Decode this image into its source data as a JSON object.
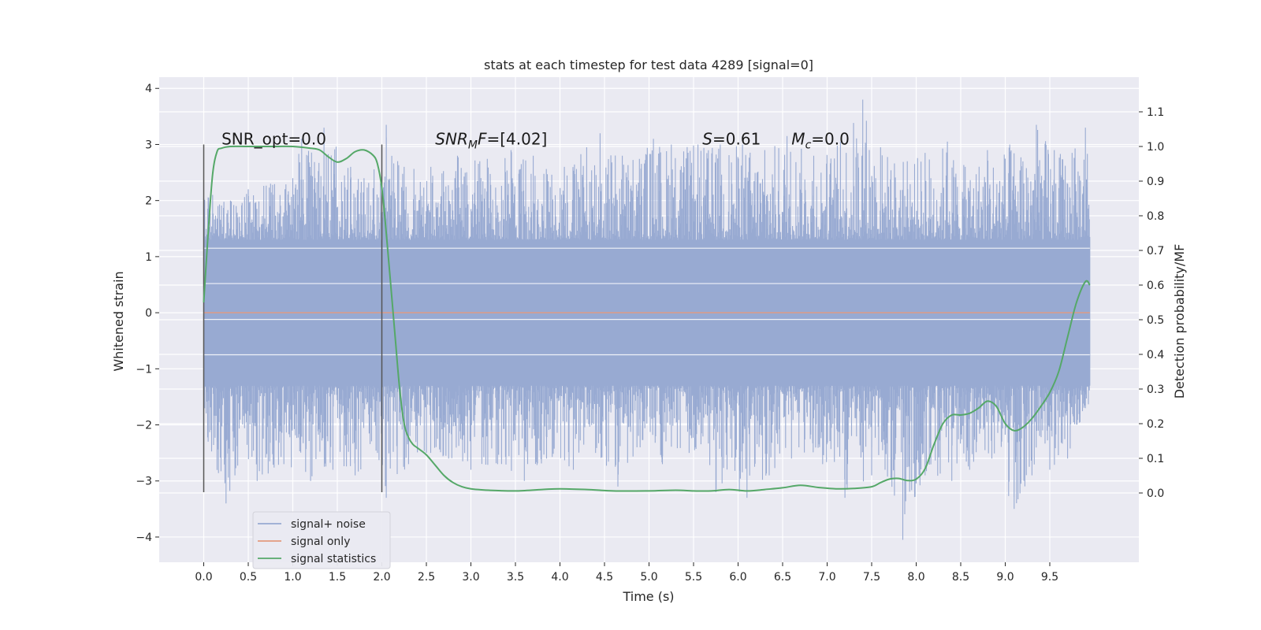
{
  "chart_data": {
    "type": "line",
    "title": "stats at each timestep for test data 4289 [signal=0]",
    "xlabel": "Time (s)",
    "ylabel": "Whitened strain",
    "ylabel_right": "Detection probability/MF",
    "xlim": [
      -0.5,
      10.5
    ],
    "ylim": [
      -4.45,
      4.2
    ],
    "ylim_right": [
      -0.2,
      1.2
    ],
    "x_ticks": [
      0.0,
      0.5,
      1.0,
      1.5,
      2.0,
      2.5,
      3.0,
      3.5,
      4.0,
      4.5,
      5.0,
      5.5,
      6.0,
      6.5,
      7.0,
      7.5,
      8.0,
      8.5,
      9.0,
      9.5
    ],
    "x_tick_labels": [
      "0.0",
      "0.5",
      "1.0",
      "1.5",
      "2.0",
      "2.5",
      "3.0",
      "3.5",
      "4.0",
      "4.5",
      "5.0",
      "5.5",
      "6.0",
      "6.5",
      "7.0",
      "7.5",
      "8.0",
      "8.5",
      "9.0",
      "9.5"
    ],
    "y_ticks": [
      -4,
      -3,
      -2,
      -1,
      0,
      1,
      2,
      3,
      4
    ],
    "y_tick_labels": [
      "−4",
      "−3",
      "−2",
      "−1",
      "0",
      "1",
      "2",
      "3",
      "4"
    ],
    "y_right_ticks": [
      0.0,
      0.1,
      0.2,
      0.3,
      0.4,
      0.5,
      0.6,
      0.7,
      0.8,
      0.9,
      1.0,
      1.1
    ],
    "y_right_tick_labels": [
      "0.0",
      "0.1",
      "0.2",
      "0.3",
      "0.4",
      "0.5",
      "0.6",
      "0.7",
      "0.8",
      "0.9",
      "1.0",
      "1.1"
    ],
    "grid": true,
    "legend_position": "bottom-left",
    "colors": {
      "signal_noise": "#98aad2",
      "signal_only": "#e39a7e",
      "statistics": "#55a868",
      "marker": "#555555",
      "background": "#eaeaf2",
      "grid": "#ffffff"
    },
    "series": [
      {
        "name": "signal+ noise",
        "axis": "left",
        "style": "dense-noise",
        "x_range": [
          0.0,
          9.95
        ],
        "band_low": -1.3,
        "band_high": 1.3,
        "peaks_high": [
          [
            0.1,
            2.1
          ],
          [
            0.3,
            2.0
          ],
          [
            0.5,
            2.2
          ],
          [
            0.75,
            2.3
          ],
          [
            1.0,
            2.4
          ],
          [
            1.1,
            3.1
          ],
          [
            1.35,
            3.3
          ],
          [
            1.65,
            2.6
          ],
          [
            1.8,
            2.4
          ],
          [
            2.05,
            3.35
          ],
          [
            2.25,
            2.6
          ],
          [
            2.55,
            2.6
          ],
          [
            2.85,
            2.8
          ],
          [
            3.1,
            2.7
          ],
          [
            3.45,
            2.9
          ],
          [
            3.7,
            2.8
          ],
          [
            4.05,
            2.6
          ],
          [
            4.3,
            2.95
          ],
          [
            4.45,
            3.2
          ],
          [
            4.7,
            2.8
          ],
          [
            5.05,
            3.1
          ],
          [
            5.25,
            3.0
          ],
          [
            5.55,
            3.0
          ],
          [
            5.8,
            3.0
          ],
          [
            6.05,
            3.0
          ],
          [
            6.3,
            2.9
          ],
          [
            6.55,
            3.15
          ],
          [
            6.85,
            2.8
          ],
          [
            7.15,
            3.05
          ],
          [
            7.4,
            3.8
          ],
          [
            7.6,
            2.95
          ],
          [
            7.9,
            2.7
          ],
          [
            8.1,
            2.85
          ],
          [
            8.35,
            3.05
          ],
          [
            8.55,
            2.6
          ],
          [
            8.8,
            2.9
          ],
          [
            9.05,
            3.0
          ],
          [
            9.35,
            3.35
          ],
          [
            9.55,
            2.9
          ],
          [
            9.75,
            2.85
          ],
          [
            9.9,
            3.3
          ]
        ],
        "peaks_low": [
          [
            0.05,
            -2.3
          ],
          [
            0.25,
            -3.4
          ],
          [
            0.35,
            -2.9
          ],
          [
            0.6,
            -3.0
          ],
          [
            0.9,
            -2.7
          ],
          [
            1.2,
            -3.0
          ],
          [
            1.45,
            -2.8
          ],
          [
            1.7,
            -2.9
          ],
          [
            1.95,
            -2.5
          ],
          [
            2.05,
            -3.3
          ],
          [
            2.3,
            -2.7
          ],
          [
            2.5,
            -2.5
          ],
          [
            2.75,
            -2.6
          ],
          [
            3.0,
            -2.8
          ],
          [
            3.3,
            -2.7
          ],
          [
            3.6,
            -3.0
          ],
          [
            3.85,
            -2.6
          ],
          [
            4.15,
            -2.8
          ],
          [
            4.4,
            -2.5
          ],
          [
            4.65,
            -3.1
          ],
          [
            4.9,
            -2.4
          ],
          [
            5.15,
            -2.7
          ],
          [
            5.45,
            -2.5
          ],
          [
            5.75,
            -3.2
          ],
          [
            6.1,
            -3.3
          ],
          [
            6.35,
            -2.9
          ],
          [
            6.6,
            -2.6
          ],
          [
            6.95,
            -2.7
          ],
          [
            7.2,
            -3.3
          ],
          [
            7.5,
            -2.9
          ],
          [
            7.65,
            -2.8
          ],
          [
            7.85,
            -4.05
          ],
          [
            8.1,
            -2.9
          ],
          [
            8.4,
            -3.0
          ],
          [
            8.6,
            -2.8
          ],
          [
            8.85,
            -2.6
          ],
          [
            9.1,
            -3.5
          ],
          [
            9.3,
            -2.9
          ],
          [
            9.5,
            -2.8
          ],
          [
            9.7,
            -2.6
          ],
          [
            9.9,
            -1.7
          ]
        ]
      },
      {
        "name": "signal only",
        "axis": "left",
        "x": [
          0.0,
          9.95
        ],
        "y": [
          0.0,
          0.0
        ]
      },
      {
        "name": "signal statistics",
        "axis": "right",
        "x": [
          0.0,
          0.05,
          0.1,
          0.15,
          0.2,
          0.3,
          0.5,
          0.8,
          1.0,
          1.2,
          1.3,
          1.4,
          1.5,
          1.6,
          1.7,
          1.8,
          1.9,
          1.95,
          2.0,
          2.05,
          2.1,
          2.15,
          2.2,
          2.25,
          2.3,
          2.35,
          2.4,
          2.5,
          2.6,
          2.7,
          2.8,
          2.9,
          3.0,
          3.2,
          3.5,
          3.8,
          4.0,
          4.3,
          4.6,
          5.0,
          5.3,
          5.5,
          5.7,
          5.9,
          6.1,
          6.3,
          6.5,
          6.7,
          6.9,
          7.1,
          7.3,
          7.5,
          7.6,
          7.7,
          7.8,
          7.9,
          8.0,
          8.1,
          8.2,
          8.3,
          8.4,
          8.5,
          8.6,
          8.7,
          8.8,
          8.9,
          9.0,
          9.1,
          9.2,
          9.3,
          9.4,
          9.5,
          9.6,
          9.7,
          9.8,
          9.9,
          9.95
        ],
        "y": [
          0.55,
          0.75,
          0.92,
          0.985,
          0.995,
          1.0,
          1.0,
          1.0,
          1.0,
          0.995,
          0.99,
          0.97,
          0.955,
          0.965,
          0.985,
          0.99,
          0.975,
          0.95,
          0.88,
          0.75,
          0.6,
          0.45,
          0.3,
          0.2,
          0.16,
          0.14,
          0.13,
          0.11,
          0.08,
          0.05,
          0.03,
          0.018,
          0.012,
          0.008,
          0.006,
          0.01,
          0.012,
          0.01,
          0.006,
          0.006,
          0.008,
          0.006,
          0.006,
          0.01,
          0.006,
          0.01,
          0.015,
          0.022,
          0.016,
          0.012,
          0.013,
          0.018,
          0.03,
          0.04,
          0.042,
          0.036,
          0.04,
          0.07,
          0.14,
          0.2,
          0.225,
          0.225,
          0.23,
          0.245,
          0.265,
          0.25,
          0.2,
          0.18,
          0.19,
          0.215,
          0.25,
          0.29,
          0.35,
          0.45,
          0.55,
          0.61,
          0.6
        ]
      }
    ],
    "markers": [
      {
        "x": 0.0,
        "y_low": -3.2,
        "y_high": 3.0
      },
      {
        "x": 2.0,
        "y_low": -3.2,
        "y_high": 3.0
      }
    ],
    "annotations": [
      {
        "text": "SNR_opt=0.0",
        "x": 0.2,
        "y": 3.0
      },
      {
        "text": "SNR",
        "sub": "M",
        "tail": "F=[4.02]",
        "italic_main": true,
        "x": 2.6,
        "y": 3.0
      },
      {
        "text": "S",
        "tail": "=0.61",
        "italic_main": true,
        "x": 5.6,
        "y": 3.0
      },
      {
        "text": "M",
        "sub": "c",
        "tail": "=0.0",
        "italic_main": true,
        "x": 6.6,
        "y": 3.0
      }
    ],
    "legend": [
      {
        "label": "signal+ noise",
        "color": "#98aad2"
      },
      {
        "label": "signal only",
        "color": "#e39a7e"
      },
      {
        "label": "signal statistics",
        "color": "#55a868"
      }
    ]
  }
}
